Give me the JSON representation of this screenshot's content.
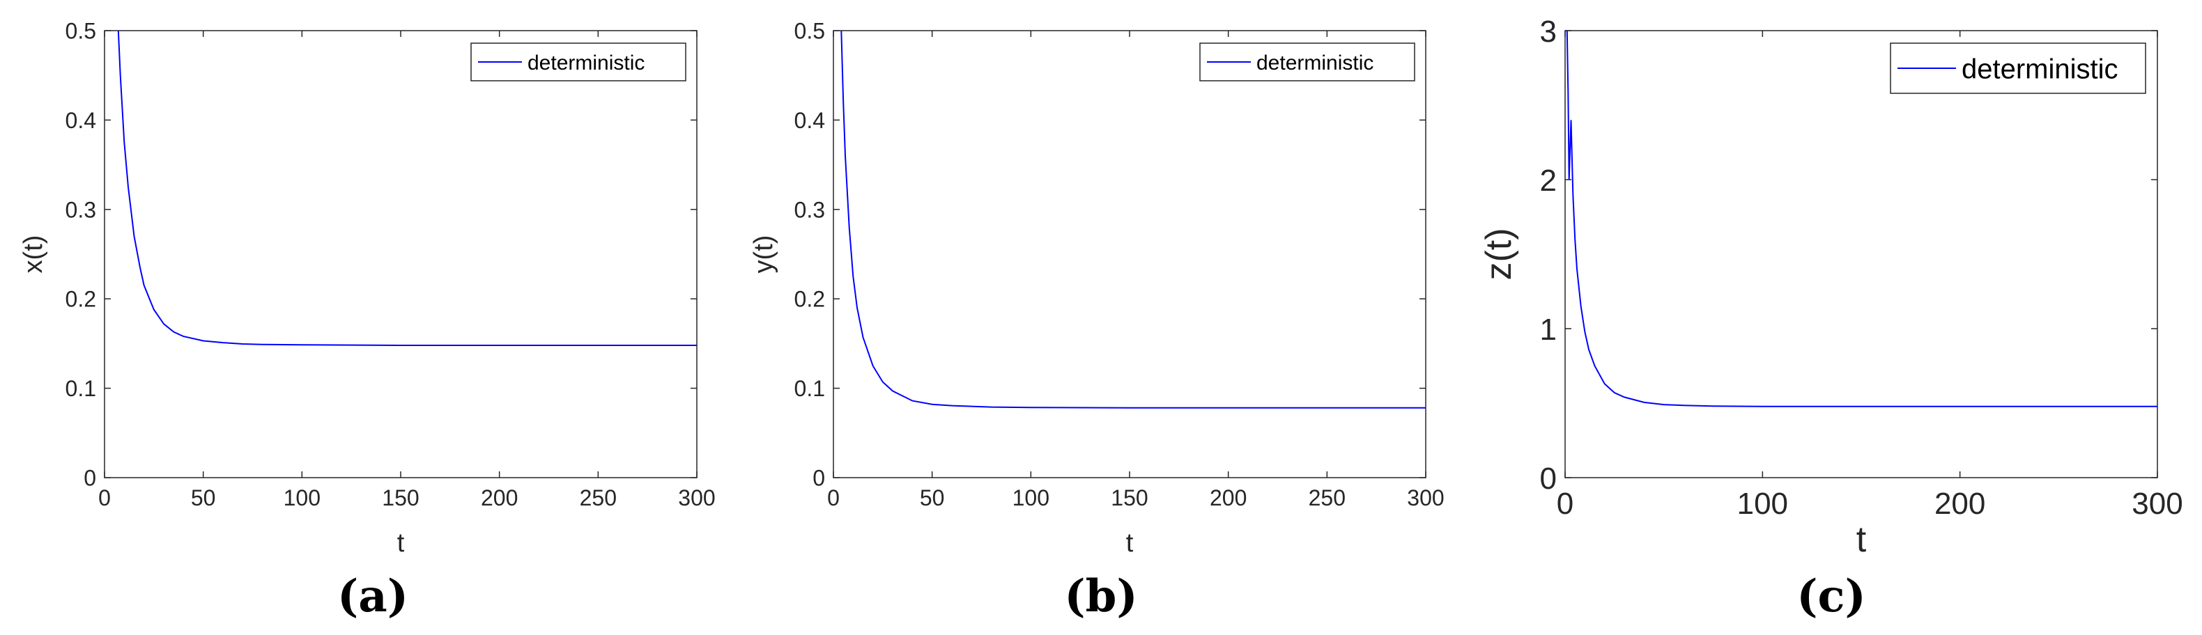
{
  "chart_data": [
    {
      "type": "line",
      "caption": "(a)",
      "xlabel": "t",
      "ylabel": "x(t)",
      "xlim": [
        0,
        300
      ],
      "ylim": [
        0,
        0.5
      ],
      "xticks": [
        0,
        50,
        100,
        150,
        200,
        250,
        300
      ],
      "yticks": [
        0,
        0.1,
        0.2,
        0.3,
        0.4,
        0.5
      ],
      "xtick_labels": [
        "0",
        "50",
        "100",
        "150",
        "200",
        "250",
        "300"
      ],
      "ytick_labels": [
        "0",
        "0.1",
        "0.2",
        "0.3",
        "0.4",
        "0.5"
      ],
      "grid": false,
      "legend": {
        "position": "top-right",
        "entries": [
          "deterministic"
        ]
      },
      "series": [
        {
          "name": "deterministic",
          "color": "#0000ff",
          "x": [
            7,
            8,
            10,
            12,
            15,
            18,
            20,
            25,
            30,
            35,
            40,
            50,
            60,
            70,
            80,
            100,
            150,
            200,
            250,
            300
          ],
          "y": [
            0.5,
            0.45,
            0.375,
            0.325,
            0.27,
            0.235,
            0.215,
            0.188,
            0.172,
            0.163,
            0.158,
            0.153,
            0.151,
            0.1495,
            0.149,
            0.1485,
            0.148,
            0.148,
            0.148,
            0.148
          ]
        }
      ]
    },
    {
      "type": "line",
      "caption": "(b)",
      "xlabel": "t",
      "ylabel": "y(t)",
      "xlim": [
        0,
        300
      ],
      "ylim": [
        0,
        0.5
      ],
      "xticks": [
        0,
        50,
        100,
        150,
        200,
        250,
        300
      ],
      "yticks": [
        0,
        0.1,
        0.2,
        0.3,
        0.4,
        0.5
      ],
      "xtick_labels": [
        "0",
        "50",
        "100",
        "150",
        "200",
        "250",
        "300"
      ],
      "ytick_labels": [
        "0",
        "0.1",
        "0.2",
        "0.3",
        "0.4",
        "0.5"
      ],
      "grid": false,
      "legend": {
        "position": "top-right",
        "entries": [
          "deterministic"
        ]
      },
      "series": [
        {
          "name": "deterministic",
          "color": "#0000ff",
          "x": [
            4,
            5,
            6,
            8,
            10,
            12,
            15,
            20,
            25,
            30,
            40,
            50,
            60,
            80,
            100,
            150,
            200,
            250,
            300
          ],
          "y": [
            0.5,
            0.42,
            0.36,
            0.28,
            0.225,
            0.19,
            0.157,
            0.125,
            0.107,
            0.097,
            0.086,
            0.082,
            0.0805,
            0.079,
            0.0785,
            0.078,
            0.078,
            0.078,
            0.078
          ]
        }
      ]
    },
    {
      "type": "line",
      "caption": "(c)",
      "xlabel": "t",
      "ylabel": "z(t)",
      "xlim": [
        0,
        300
      ],
      "ylim": [
        0,
        3
      ],
      "xticks": [
        0,
        100,
        200,
        300
      ],
      "yticks": [
        0,
        1,
        2,
        3
      ],
      "xtick_labels": [
        "0",
        "100",
        "200",
        "300"
      ],
      "ytick_labels": [
        "0",
        "1",
        "2",
        "3"
      ],
      "grid": false,
      "legend": {
        "position": "top-right",
        "entries": [
          "deterministic"
        ]
      },
      "series": [
        {
          "name": "deterministic",
          "color": "#0000ff",
          "x": [
            1,
            1.5,
            2,
            3,
            4,
            5,
            6,
            8,
            10,
            12,
            15,
            20,
            25,
            30,
            40,
            50,
            60,
            75,
            100,
            150,
            200,
            250,
            300
          ],
          "y": [
            3,
            2.6,
            2.0,
            2.4,
            1.9,
            1.6,
            1.4,
            1.15,
            0.98,
            0.86,
            0.75,
            0.63,
            0.57,
            0.54,
            0.505,
            0.49,
            0.485,
            0.48,
            0.478,
            0.478,
            0.478,
            0.478,
            0.478
          ]
        }
      ]
    }
  ]
}
